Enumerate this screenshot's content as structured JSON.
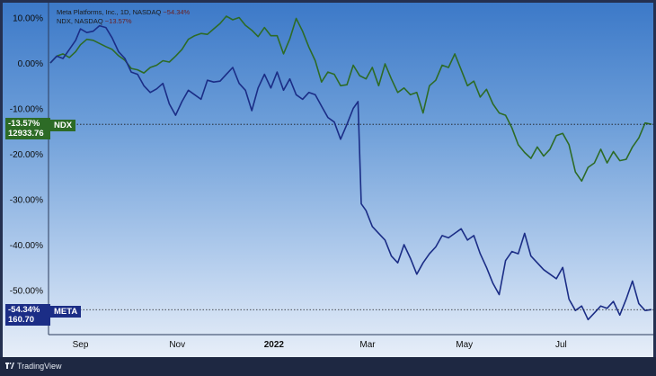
{
  "chart_data": {
    "type": "line",
    "yunit": "%",
    "ylim": [
      -58,
      12
    ],
    "yticks": [
      "10.00%",
      "0.00%",
      "-10.00%",
      "-20.00%",
      "-30.00%",
      "-40.00%",
      "-50.00%"
    ],
    "ytick_values": [
      10,
      0,
      -10,
      -20,
      -30,
      -40,
      -50
    ],
    "xticks": [
      "Sep",
      "Nov",
      "2022",
      "Mar",
      "May",
      "Jul"
    ],
    "xtick_days": [
      19,
      80,
      141,
      200,
      261,
      322
    ],
    "total_days": 350,
    "grid": false,
    "series": [
      {
        "name": "NDX",
        "color": "#2d6b26",
        "last_pct": "-13.57%",
        "last_value": "12933.76",
        "points": [
          [
            0,
            0.0
          ],
          [
            4,
            1.5
          ],
          [
            8,
            2.0
          ],
          [
            12,
            1.2
          ],
          [
            16,
            2.5
          ],
          [
            19,
            4.0
          ],
          [
            23,
            5.2
          ],
          [
            27,
            5.0
          ],
          [
            31,
            4.3
          ],
          [
            35,
            3.6
          ],
          [
            39,
            3.0
          ],
          [
            43,
            1.6
          ],
          [
            47,
            0.6
          ],
          [
            51,
            -1.2
          ],
          [
            55,
            -1.5
          ],
          [
            59,
            -2.2
          ],
          [
            63,
            -1.0
          ],
          [
            67,
            -0.5
          ],
          [
            71,
            0.5
          ],
          [
            75,
            0.2
          ],
          [
            79,
            1.5
          ],
          [
            83,
            3.0
          ],
          [
            87,
            5.2
          ],
          [
            91,
            6.0
          ],
          [
            95,
            6.5
          ],
          [
            99,
            6.3
          ],
          [
            103,
            7.5
          ],
          [
            107,
            8.7
          ],
          [
            111,
            10.3
          ],
          [
            115,
            9.5
          ],
          [
            119,
            10.0
          ],
          [
            123,
            8.3
          ],
          [
            127,
            7.2
          ],
          [
            131,
            5.8
          ],
          [
            135,
            7.8
          ],
          [
            139,
            6.0
          ],
          [
            143,
            6.0
          ],
          [
            147,
            2.0
          ],
          [
            151,
            5.3
          ],
          [
            155,
            9.8
          ],
          [
            159,
            7.0
          ],
          [
            163,
            3.5
          ],
          [
            167,
            0.5
          ],
          [
            171,
            -4.2
          ],
          [
            175,
            -2.0
          ],
          [
            179,
            -2.5
          ],
          [
            183,
            -5.0
          ],
          [
            187,
            -4.8
          ],
          [
            191,
            -0.5
          ],
          [
            195,
            -2.8
          ],
          [
            199,
            -3.5
          ],
          [
            203,
            -1.0
          ],
          [
            207,
            -5.0
          ],
          [
            211,
            -0.2
          ],
          [
            215,
            -3.5
          ],
          [
            219,
            -6.5
          ],
          [
            223,
            -5.5
          ],
          [
            227,
            -7.0
          ],
          [
            231,
            -6.5
          ],
          [
            235,
            -11.0
          ],
          [
            239,
            -5.0
          ],
          [
            243,
            -3.8
          ],
          [
            247,
            -0.5
          ],
          [
            251,
            -1.0
          ],
          [
            255,
            2.0
          ],
          [
            259,
            -1.5
          ],
          [
            263,
            -5.0
          ],
          [
            267,
            -4.0
          ],
          [
            271,
            -7.5
          ],
          [
            275,
            -5.8
          ],
          [
            279,
            -9.0
          ],
          [
            283,
            -11.0
          ],
          [
            287,
            -11.5
          ],
          [
            291,
            -14.3
          ],
          [
            295,
            -18.0
          ],
          [
            299,
            -19.7
          ],
          [
            303,
            -21.0
          ],
          [
            307,
            -18.5
          ],
          [
            311,
            -20.5
          ],
          [
            315,
            -19.0
          ],
          [
            319,
            -16.0
          ],
          [
            323,
            -15.5
          ],
          [
            327,
            -18.0
          ],
          [
            331,
            -24.0
          ],
          [
            335,
            -26.0
          ],
          [
            339,
            -23.0
          ],
          [
            343,
            -22.0
          ],
          [
            347,
            -19.0
          ],
          [
            351,
            -22.0
          ],
          [
            355,
            -19.5
          ],
          [
            359,
            -21.5
          ],
          [
            363,
            -21.2
          ],
          [
            367,
            -18.5
          ],
          [
            371,
            -16.5
          ],
          [
            375,
            -13.2
          ],
          [
            379,
            -13.5
          ]
        ]
      },
      {
        "name": "META",
        "color": "#1b2d86",
        "last_pct": "-54.34%",
        "last_value": "160.70",
        "points": [
          [
            0,
            0.0
          ],
          [
            4,
            1.5
          ],
          [
            8,
            1.0
          ],
          [
            12,
            3.0
          ],
          [
            16,
            5.0
          ],
          [
            19,
            7.5
          ],
          [
            23,
            6.7
          ],
          [
            27,
            7.0
          ],
          [
            31,
            8.2
          ],
          [
            35,
            7.8
          ],
          [
            39,
            5.5
          ],
          [
            43,
            2.5
          ],
          [
            47,
            1.0
          ],
          [
            51,
            -2.0
          ],
          [
            55,
            -2.5
          ],
          [
            59,
            -5.0
          ],
          [
            63,
            -6.5
          ],
          [
            67,
            -5.7
          ],
          [
            71,
            -4.5
          ],
          [
            75,
            -9.0
          ],
          [
            79,
            -11.5
          ],
          [
            83,
            -8.5
          ],
          [
            87,
            -6.0
          ],
          [
            91,
            -7.0
          ],
          [
            95,
            -8.0
          ],
          [
            99,
            -3.8
          ],
          [
            103,
            -4.2
          ],
          [
            107,
            -4.0
          ],
          [
            111,
            -2.5
          ],
          [
            115,
            -1.0
          ],
          [
            119,
            -4.5
          ],
          [
            123,
            -6.0
          ],
          [
            127,
            -10.5
          ],
          [
            131,
            -5.5
          ],
          [
            135,
            -2.5
          ],
          [
            139,
            -5.5
          ],
          [
            143,
            -2.0
          ],
          [
            147,
            -6.0
          ],
          [
            151,
            -3.5
          ],
          [
            155,
            -7.0
          ],
          [
            159,
            -8.0
          ],
          [
            163,
            -6.5
          ],
          [
            167,
            -7.0
          ],
          [
            171,
            -9.5
          ],
          [
            175,
            -12.0
          ],
          [
            179,
            -13.0
          ],
          [
            183,
            -16.8
          ],
          [
            187,
            -13.5
          ],
          [
            191,
            -10.0
          ],
          [
            194,
            -8.5
          ],
          [
            196,
            -31.0
          ],
          [
            199,
            -32.5
          ],
          [
            203,
            -36.0
          ],
          [
            207,
            -37.5
          ],
          [
            211,
            -39.0
          ],
          [
            215,
            -42.5
          ],
          [
            219,
            -44.0
          ],
          [
            223,
            -40.0
          ],
          [
            227,
            -43.0
          ],
          [
            231,
            -46.5
          ],
          [
            235,
            -44.0
          ],
          [
            239,
            -42.0
          ],
          [
            243,
            -40.5
          ],
          [
            247,
            -38.0
          ],
          [
            251,
            -38.5
          ],
          [
            255,
            -37.5
          ],
          [
            259,
            -36.5
          ],
          [
            263,
            -39.0
          ],
          [
            267,
            -38.0
          ],
          [
            271,
            -42.0
          ],
          [
            275,
            -45.0
          ],
          [
            279,
            -48.5
          ],
          [
            283,
            -51.0
          ],
          [
            287,
            -43.5
          ],
          [
            291,
            -41.5
          ],
          [
            295,
            -42.0
          ],
          [
            299,
            -37.5
          ],
          [
            303,
            -42.5
          ],
          [
            307,
            -44.0
          ],
          [
            311,
            -45.5
          ],
          [
            315,
            -46.5
          ],
          [
            319,
            -47.5
          ],
          [
            323,
            -45.0
          ],
          [
            327,
            -52.0
          ],
          [
            331,
            -54.5
          ],
          [
            335,
            -53.5
          ],
          [
            339,
            -56.5
          ],
          [
            343,
            -55.0
          ],
          [
            347,
            -53.5
          ],
          [
            351,
            -54.0
          ],
          [
            355,
            -52.5
          ],
          [
            359,
            -55.5
          ],
          [
            363,
            -52.0
          ],
          [
            367,
            -48.0
          ],
          [
            371,
            -53.0
          ],
          [
            375,
            -54.5
          ],
          [
            379,
            -54.3
          ]
        ]
      }
    ]
  },
  "legend": {
    "meta_label": "Meta Platforms, Inc., 1D, NASDAQ",
    "meta_change": "−54.34%",
    "ndx_label": "NDX, NASDAQ",
    "ndx_change": "−13.57%"
  },
  "footer": {
    "brand": "TradingView"
  }
}
